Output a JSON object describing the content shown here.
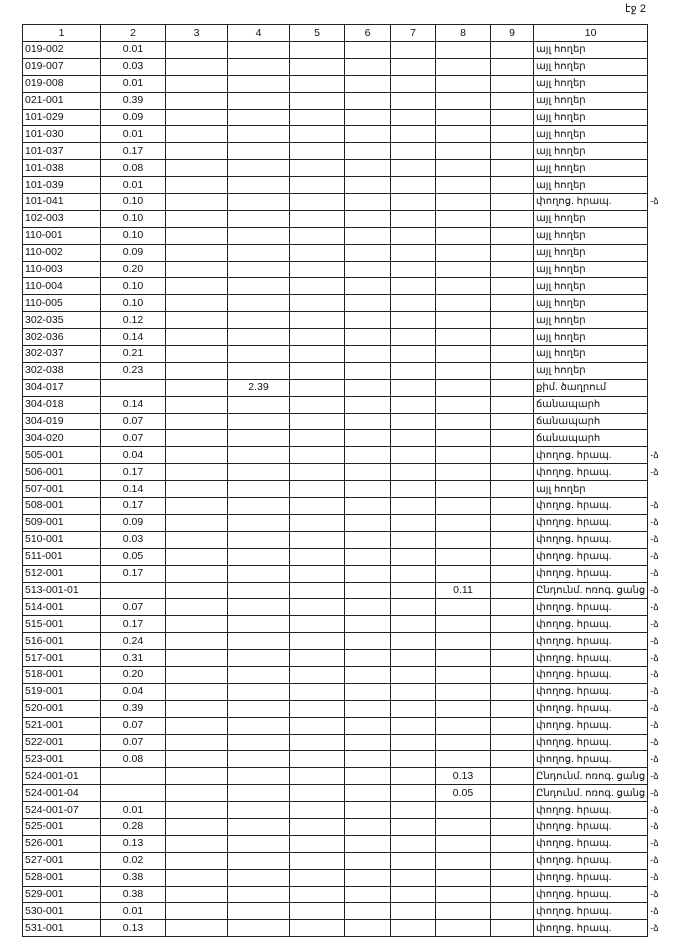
{
  "page_label": "էջ 2",
  "table": {
    "header": [
      "1",
      "2",
      "3",
      "4",
      "5",
      "6",
      "7",
      "8",
      "9",
      "10"
    ],
    "rows": [
      {
        "1": "019-002",
        "2": "0.01",
        "10": "այլ հողեր"
      },
      {
        "1": "019-007",
        "2": "0.03",
        "10": "այլ հողեր"
      },
      {
        "1": "019-008",
        "2": "0.01",
        "10": "այլ հողեր"
      },
      {
        "1": "021-001",
        "2": "0.39",
        "10": "այլ հողեր"
      },
      {
        "1": "101-029",
        "2": "0.09",
        "10": "այլ հողեր"
      },
      {
        "1": "101-030",
        "2": "0.01",
        "10": "այլ հողեր"
      },
      {
        "1": "101-037",
        "2": "0.17",
        "10": "այլ հողեր"
      },
      {
        "1": "101-038",
        "2": "0.08",
        "10": "այլ հողեր"
      },
      {
        "1": "101-039",
        "2": "0.01",
        "10": "այլ հողեր"
      },
      {
        "1": "101-041",
        "2": "0.10",
        "10": "փողոց. հրապ.",
        "note": "-ձ"
      },
      {
        "1": "102-003",
        "2": "0.10",
        "10": "այլ հողեր"
      },
      {
        "1": "110-001",
        "2": "0.10",
        "10": "այլ հողեր"
      },
      {
        "1": "110-002",
        "2": "0.09",
        "10": "այլ հողեր"
      },
      {
        "1": "110-003",
        "2": "0.20",
        "10": "այլ հողեր"
      },
      {
        "1": "110-004",
        "2": "0.10",
        "10": "այլ հողեր"
      },
      {
        "1": "110-005",
        "2": "0.10",
        "10": "այլ հողեր"
      },
      {
        "1": "302-035",
        "2": "0.12",
        "10": "այլ հողեր"
      },
      {
        "1": "302-036",
        "2": "0.14",
        "10": "այլ հողեր"
      },
      {
        "1": "302-037",
        "2": "0.21",
        "10": "այլ հողեր"
      },
      {
        "1": "302-038",
        "2": "0.23",
        "10": "այլ հողեր"
      },
      {
        "1": "304-017",
        "4": "2.39",
        "10": "քիմ. ծաղրում"
      },
      {
        "1": "304-018",
        "2": "0.14",
        "10": "ճանապարհ"
      },
      {
        "1": "304-019",
        "2": "0.07",
        "10": "ճանապարհ"
      },
      {
        "1": "304-020",
        "2": "0.07",
        "10": "ճանապարհ"
      },
      {
        "1": "505-001",
        "2": "0.04",
        "10": "փողոց. հրապ.",
        "note": "-ձ"
      },
      {
        "1": "506-001",
        "2": "0.17",
        "10": "փողոց. հրապ.",
        "note": "-ձ"
      },
      {
        "1": "507-001",
        "2": "0.14",
        "10": "այլ հողեր"
      },
      {
        "1": "508-001",
        "2": "0.17",
        "10": "փողոց. հրապ.",
        "note": "-ձ"
      },
      {
        "1": "509-001",
        "2": "0.09",
        "10": "փողոց. հրապ.",
        "note": "-ձ"
      },
      {
        "1": "510-001",
        "2": "0.03",
        "10": "փողոց. հրապ.",
        "note": "-ձ"
      },
      {
        "1": "511-001",
        "2": "0.05",
        "10": "փողոց. հրապ.",
        "note": "-ձ"
      },
      {
        "1": "512-001",
        "2": "0.17",
        "10": "փողոց. հրապ.",
        "note": "-ձ"
      },
      {
        "1": "513-001-01",
        "8": "0.11",
        "10": "Ընդունմ. ոռոգ. ցանց",
        "note": "-ձ"
      },
      {
        "1": "514-001",
        "2": "0.07",
        "10": "փողոց. հրապ.",
        "note": "-ձ"
      },
      {
        "1": "515-001",
        "2": "0.17",
        "10": "փողոց. հրապ.",
        "note": "-ձ"
      },
      {
        "1": "516-001",
        "2": "0.24",
        "10": "փողոց. հրապ.",
        "note": "-ձ"
      },
      {
        "1": "517-001",
        "2": "0.31",
        "10": "փողոց. հրապ.",
        "note": "-ձ"
      },
      {
        "1": "518-001",
        "2": "0.20",
        "10": "փողոց. հրապ.",
        "note": "-ձ"
      },
      {
        "1": "519-001",
        "2": "0.04",
        "10": "փողոց. հրապ.",
        "note": "-ձ"
      },
      {
        "1": "520-001",
        "2": "0.39",
        "10": "փողոց. հրապ.",
        "note": "-ձ"
      },
      {
        "1": "521-001",
        "2": "0.07",
        "10": "փողոց. հրապ.",
        "note": "-ձ"
      },
      {
        "1": "522-001",
        "2": "0.07",
        "10": "փողոց. հրապ.",
        "note": "-ձ"
      },
      {
        "1": "523-001",
        "2": "0.08",
        "10": "փողոց. հրապ.",
        "note": "-ձ"
      },
      {
        "1": "524-001-01",
        "8": "0.13",
        "10": "Ընդունմ. ոռոգ. ցանց",
        "note": "-ձ"
      },
      {
        "1": "524-001-04",
        "8": "0.05",
        "10": "Ընդունմ. ոռոգ. ցանց",
        "note": "-ձ"
      },
      {
        "1": "524-001-07",
        "2": "0.01",
        "10": "փողոց. հրապ.",
        "note": "-ձ"
      },
      {
        "1": "525-001",
        "2": "0.28",
        "10": "փողոց. հրապ.",
        "note": "-ձ"
      },
      {
        "1": "526-001",
        "2": "0.13",
        "10": "փողոց. հրապ.",
        "note": "-ձ"
      },
      {
        "1": "527-001",
        "2": "0.02",
        "10": "փողոց. հրապ.",
        "note": "-ձ"
      },
      {
        "1": "528-001",
        "2": "0.38",
        "10": "փողոց. հրապ.",
        "note": "-ձ"
      },
      {
        "1": "529-001",
        "2": "0.38",
        "10": "փողոց. հրապ.",
        "note": "-ձ"
      },
      {
        "1": "530-001",
        "2": "0.01",
        "10": "փողոց. հրապ.",
        "note": "-ձ"
      },
      {
        "1": "531-001",
        "2": "0.13",
        "10": "փողոց. հրապ.",
        "note": "-ձ"
      }
    ]
  }
}
